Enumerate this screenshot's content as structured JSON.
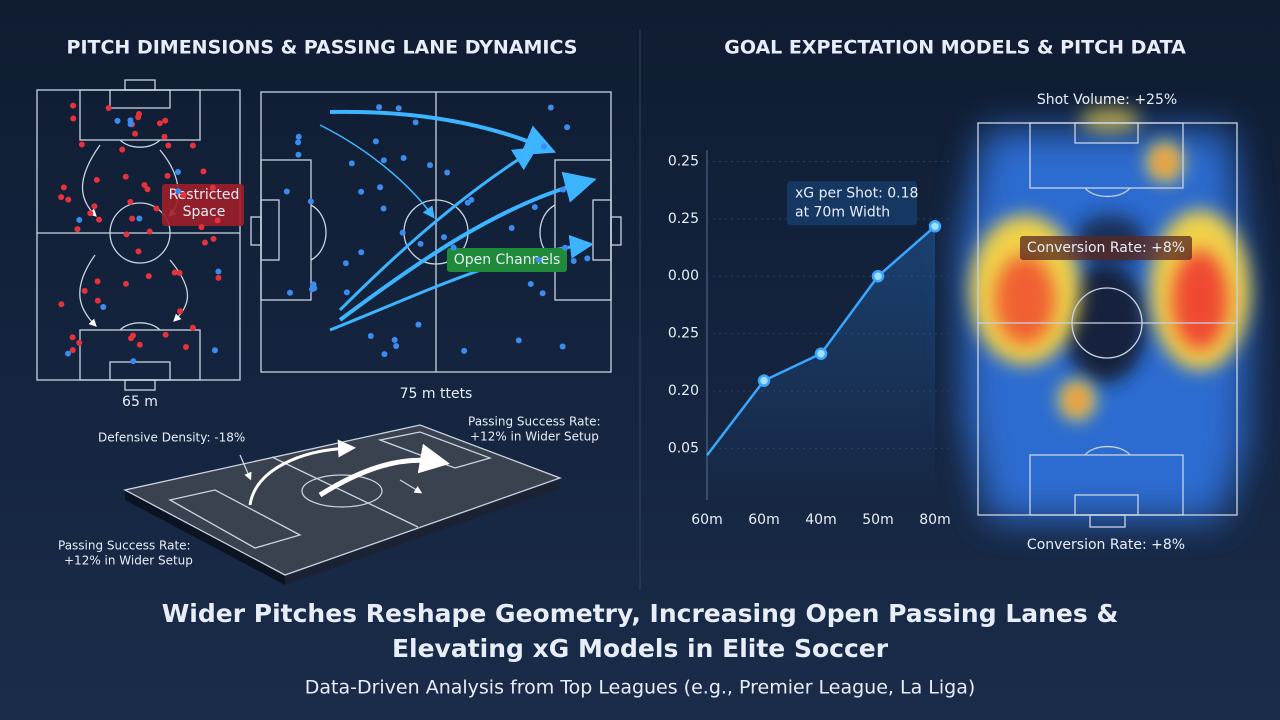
{
  "left_panel": {
    "title": "PITCH DIMENSIONS & PASSING LANE DYNAMICS",
    "narrow_pitch": {
      "label": "Restricted Space",
      "width_label": "65 m"
    },
    "wide_pitch": {
      "label": "Open Channels",
      "width_label": "75 m ttets"
    },
    "perspective_pitch": {
      "defensive_density": "Defensive Density: -18%",
      "passing_top": [
        "Passing Success Rate:",
        "+12% in Wider Setup"
      ],
      "passing_bottom": [
        "Passing Success Rate:",
        "+12% in Wider Setup"
      ]
    }
  },
  "right_panel": {
    "title": "GOAL EXPECTATION MODELS & PITCH DATA",
    "heatmap": {
      "shot_volume": "Shot Volume: +25%",
      "conversion_mid": "Conversion Rate: +8%",
      "conversion_bottom": "Conversion Rate: +8%"
    }
  },
  "chart_data": {
    "type": "line",
    "categories": [
      "60m",
      "60m",
      "40m",
      "50m",
      "80m"
    ],
    "values": [
      -0.12,
      1.18,
      1.65,
      3.0,
      3.87
    ],
    "color": "#3aa6ff",
    "annotation": [
      "xG per Shot: 0.18",
      "at 70m Width"
    ],
    "ylim": [
      -0.9,
      5.2
    ],
    "yticks": [
      {
        "value": 0,
        "label": "0.05"
      },
      {
        "value": 1,
        "label": "0.20"
      },
      {
        "value": 2,
        "label": "0.25"
      },
      {
        "value": 3,
        "label": "0.00"
      },
      {
        "value": 4,
        "label": "0.25"
      },
      {
        "value": 5,
        "label": "0.25"
      }
    ]
  },
  "footer": {
    "headline": [
      "Wider Pitches Reshape Geometry, Increasing Open Passing Lanes &",
      "Elevating xG Models in Elite Soccer"
    ],
    "subtitle": "Data-Driven Analysis from Top Leagues (e.g., Premier League, La Liga)"
  }
}
